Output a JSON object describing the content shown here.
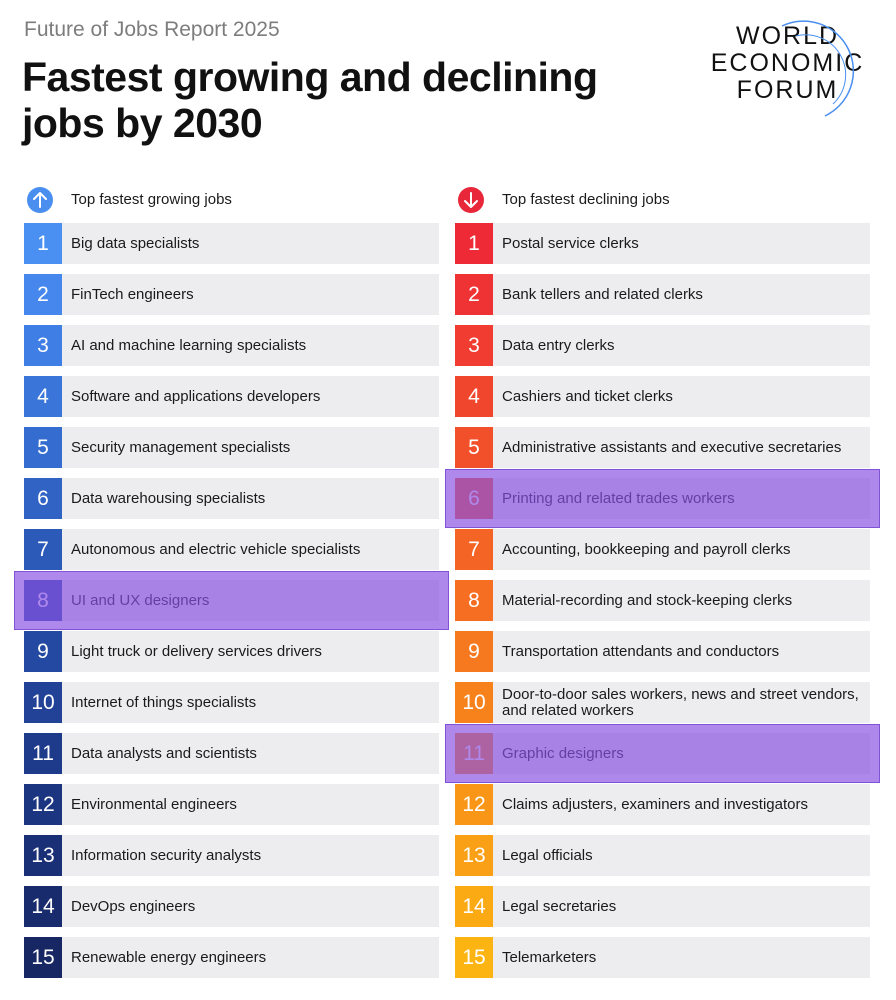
{
  "header": {
    "report": "Future of Jobs Report 2025",
    "title_line1": "Fastest growing and declining",
    "title_line2": "jobs by 2030"
  },
  "logo": {
    "line1": "WORLD",
    "line2": "ECONOMIC",
    "line3": "FORUM"
  },
  "growing": {
    "heading": "Top fastest growing jobs",
    "icon": "arrow-up-icon",
    "accent": "#4a8ff0",
    "items": [
      {
        "n": "1",
        "label": "Big data specialists",
        "color": "#4a90f2"
      },
      {
        "n": "2",
        "label": "FinTech engineers",
        "color": "#4587ec"
      },
      {
        "n": "3",
        "label": "AI and machine learning specialists",
        "color": "#3f7ee4"
      },
      {
        "n": "4",
        "label": "Software and applications developers",
        "color": "#3a75da"
      },
      {
        "n": "5",
        "label": "Security management specialists",
        "color": "#356ccf"
      },
      {
        "n": "6",
        "label": "Data warehousing specialists",
        "color": "#3063c4"
      },
      {
        "n": "7",
        "label": "Autonomous and electric vehicle specialists",
        "color": "#2b5ab9"
      },
      {
        "n": "8",
        "label": "UI and UX designers",
        "color": "#2851ad"
      },
      {
        "n": "9",
        "label": "Light truck or delivery services drivers",
        "color": "#2449a2"
      },
      {
        "n": "10",
        "label": "Internet of things specialists",
        "color": "#214296"
      },
      {
        "n": "11",
        "label": "Data analysts and scientists",
        "color": "#1e3b8b"
      },
      {
        "n": "12",
        "label": "Environmental engineers",
        "color": "#1c3580"
      },
      {
        "n": "13",
        "label": "Information security analysts",
        "color": "#1a3076"
      },
      {
        "n": "14",
        "label": "DevOps engineers",
        "color": "#182b6c"
      },
      {
        "n": "15",
        "label": "Renewable energy engineers",
        "color": "#162763"
      }
    ]
  },
  "declining": {
    "heading": "Top fastest declining jobs",
    "icon": "arrow-down-icon",
    "accent": "#e8283a",
    "items": [
      {
        "n": "1",
        "label": "Postal service clerks",
        "color": "#ee2a37"
      },
      {
        "n": "2",
        "label": "Bank tellers and related clerks",
        "color": "#ef3334"
      },
      {
        "n": "3",
        "label": "Data entry clerks",
        "color": "#f03c31"
      },
      {
        "n": "4",
        "label": "Cashiers and ticket clerks",
        "color": "#f1462e"
      },
      {
        "n": "5",
        "label": "Administrative assistants and executive secretaries",
        "color": "#f2502b"
      },
      {
        "n": "6",
        "label": "Printing and related trades workers",
        "color": "#f35a28"
      },
      {
        "n": "7",
        "label": "Accounting, bookkeeping and payroll clerks",
        "color": "#f46425"
      },
      {
        "n": "8",
        "label": "Material-recording and stock-keeping clerks",
        "color": "#f56e22"
      },
      {
        "n": "9",
        "label": "Transportation attendants and conductors",
        "color": "#f6781f"
      },
      {
        "n": "10",
        "label": "Door-to-door sales workers, news and street vendors, and related workers",
        "color": "#f7821c"
      },
      {
        "n": "11",
        "label": "Graphic designers",
        "color": "#f88c1a"
      },
      {
        "n": "12",
        "label": "Claims adjusters, examiners and investigators",
        "color": "#f99618"
      },
      {
        "n": "13",
        "label": "Legal officials",
        "color": "#faa016"
      },
      {
        "n": "14",
        "label": "Legal secretaries",
        "color": "#fbaa14"
      },
      {
        "n": "15",
        "label": "Telemarketers",
        "color": "#fcb412"
      }
    ]
  },
  "highlights": {
    "color": "#8950e2",
    "growing": [
      "8"
    ],
    "declining": [
      "6",
      "11"
    ]
  }
}
